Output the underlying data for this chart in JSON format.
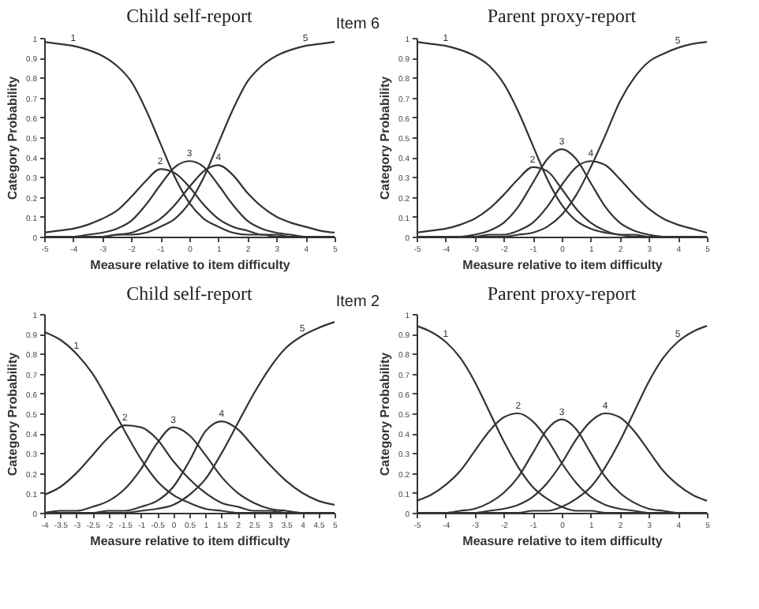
{
  "chart_data": [
    {
      "type": "line",
      "title": "Child self-report",
      "xlabel": "Measure relative to item difficulty",
      "ylabel": "Category Probability",
      "annotations": [
        "Item 6"
      ],
      "x": [
        -5,
        -4.5,
        -4,
        -3.5,
        -3,
        -2.5,
        -2,
        -1.5,
        -1,
        -0.5,
        0,
        0.5,
        1,
        1.5,
        2,
        2.5,
        3,
        3.5,
        4,
        4.5,
        5
      ],
      "xlim": [
        -5,
        5
      ],
      "xticks": [
        -5,
        -4,
        -3,
        -2,
        -1,
        0,
        1,
        2,
        3,
        4,
        5
      ],
      "ylim": [
        0,
        1
      ],
      "yticks": [
        0,
        0.1,
        0.2,
        0.3,
        0.4,
        0.5,
        0.6,
        0.7,
        0.8,
        0.9,
        1
      ],
      "grid": false,
      "series": [
        {
          "name": "1",
          "color": "#333333",
          "values": [
            0.98,
            0.97,
            0.96,
            0.94,
            0.91,
            0.86,
            0.78,
            0.64,
            0.47,
            0.3,
            0.17,
            0.09,
            0.05,
            0.02,
            0.01,
            0.01,
            0,
            0,
            0,
            0,
            0
          ]
        },
        {
          "name": "2",
          "color": "#333333",
          "values": [
            0.02,
            0.03,
            0.04,
            0.06,
            0.09,
            0.13,
            0.2,
            0.28,
            0.34,
            0.32,
            0.25,
            0.16,
            0.09,
            0.05,
            0.03,
            0.01,
            0.01,
            0,
            0,
            0,
            0
          ]
        },
        {
          "name": "3",
          "color": "#333333",
          "values": [
            0,
            0,
            0,
            0.01,
            0.02,
            0.04,
            0.08,
            0.16,
            0.26,
            0.35,
            0.38,
            0.35,
            0.26,
            0.16,
            0.08,
            0.04,
            0.02,
            0.01,
            0,
            0,
            0
          ]
        },
        {
          "name": "4",
          "color": "#333333",
          "values": [
            0,
            0,
            0,
            0,
            0,
            0.01,
            0.02,
            0.05,
            0.09,
            0.16,
            0.25,
            0.33,
            0.36,
            0.31,
            0.22,
            0.15,
            0.1,
            0.07,
            0.05,
            0.03,
            0.02
          ]
        },
        {
          "name": "5",
          "color": "#333333",
          "values": [
            0,
            0,
            0,
            0,
            0,
            0.01,
            0.01,
            0.02,
            0.05,
            0.09,
            0.17,
            0.3,
            0.47,
            0.64,
            0.78,
            0.86,
            0.91,
            0.94,
            0.96,
            0.97,
            0.98
          ]
        }
      ]
    },
    {
      "type": "line",
      "title": "Parent proxy-report",
      "xlabel": "Measure relative to item difficulty",
      "ylabel": "Category Probability",
      "x": [
        -5,
        -4.5,
        -4,
        -3.5,
        -3,
        -2.5,
        -2,
        -1.5,
        -1,
        -0.5,
        0,
        0.5,
        1,
        1.5,
        2,
        2.5,
        3,
        3.5,
        4,
        4.5,
        5
      ],
      "xlim": [
        -5,
        5
      ],
      "xticks": [
        -5,
        -4,
        -3,
        -2,
        -1,
        0,
        1,
        2,
        3,
        4,
        5
      ],
      "ylim": [
        0,
        1
      ],
      "yticks": [
        0,
        0.1,
        0.2,
        0.3,
        0.4,
        0.5,
        0.6,
        0.7,
        0.8,
        0.9,
        1
      ],
      "grid": false,
      "series": [
        {
          "name": "1",
          "color": "#333333",
          "values": [
            0.98,
            0.97,
            0.96,
            0.94,
            0.91,
            0.86,
            0.77,
            0.63,
            0.46,
            0.29,
            0.16,
            0.08,
            0.04,
            0.02,
            0.01,
            0,
            0,
            0,
            0,
            0,
            0
          ]
        },
        {
          "name": "2",
          "color": "#333333",
          "values": [
            0.02,
            0.03,
            0.04,
            0.06,
            0.09,
            0.14,
            0.21,
            0.29,
            0.35,
            0.33,
            0.24,
            0.14,
            0.07,
            0.03,
            0.01,
            0.01,
            0,
            0,
            0,
            0,
            0
          ]
        },
        {
          "name": "3",
          "color": "#333333",
          "values": [
            0,
            0,
            0,
            0,
            0.01,
            0.03,
            0.07,
            0.15,
            0.27,
            0.39,
            0.44,
            0.39,
            0.27,
            0.15,
            0.07,
            0.03,
            0.01,
            0,
            0,
            0,
            0
          ]
        },
        {
          "name": "4",
          "color": "#333333",
          "values": [
            0,
            0,
            0,
            0,
            0,
            0.01,
            0.01,
            0.03,
            0.07,
            0.15,
            0.26,
            0.35,
            0.38,
            0.36,
            0.29,
            0.21,
            0.14,
            0.09,
            0.06,
            0.04,
            0.02
          ]
        },
        {
          "name": "5",
          "color": "#333333",
          "values": [
            0,
            0,
            0,
            0,
            0,
            0,
            0,
            0.01,
            0.02,
            0.05,
            0.11,
            0.21,
            0.35,
            0.51,
            0.68,
            0.8,
            0.88,
            0.92,
            0.95,
            0.97,
            0.98
          ]
        }
      ]
    },
    {
      "type": "line",
      "title": "Child self-report",
      "xlabel": "Measure relative to item difficulty",
      "ylabel": "Category Probability",
      "annotations": [
        "Item 2"
      ],
      "x": [
        -4,
        -3.5,
        -3,
        -2.5,
        -2,
        -1.5,
        -1,
        -0.5,
        0,
        0.5,
        1,
        1.5,
        2,
        2.5,
        3,
        3.5,
        4,
        4.5,
        5
      ],
      "xlim": [
        -4,
        5
      ],
      "xticks": [
        -4,
        -3.5,
        -3,
        -2.5,
        -2,
        -1.5,
        -1,
        -0.5,
        0,
        0.5,
        1,
        1.5,
        2,
        2.5,
        3,
        3.5,
        4,
        4.5,
        5
      ],
      "ylim": [
        0,
        1
      ],
      "yticks": [
        0,
        0.1,
        0.2,
        0.3,
        0.4,
        0.5,
        0.6,
        0.7,
        0.8,
        0.9,
        1
      ],
      "grid": false,
      "series": [
        {
          "name": "1",
          "color": "#333333",
          "values": [
            0.91,
            0.87,
            0.8,
            0.7,
            0.56,
            0.41,
            0.27,
            0.16,
            0.09,
            0.05,
            0.02,
            0.01,
            0,
            0,
            0,
            0,
            0,
            0,
            0
          ]
        },
        {
          "name": "2",
          "color": "#333333",
          "values": [
            0.09,
            0.13,
            0.2,
            0.29,
            0.38,
            0.44,
            0.43,
            0.37,
            0.26,
            0.17,
            0.1,
            0.05,
            0.03,
            0.01,
            0.01,
            0,
            0,
            0,
            0
          ]
        },
        {
          "name": "3",
          "color": "#333333",
          "values": [
            0,
            0.01,
            0.01,
            0.03,
            0.06,
            0.12,
            0.22,
            0.35,
            0.43,
            0.39,
            0.29,
            0.18,
            0.1,
            0.05,
            0.02,
            0.01,
            0,
            0,
            0
          ]
        },
        {
          "name": "4",
          "color": "#333333",
          "values": [
            0,
            0,
            0,
            0,
            0.01,
            0.01,
            0.03,
            0.06,
            0.13,
            0.26,
            0.41,
            0.46,
            0.42,
            0.33,
            0.24,
            0.16,
            0.1,
            0.06,
            0.04
          ]
        },
        {
          "name": "5",
          "color": "#333333",
          "values": [
            0,
            0,
            0,
            0,
            0,
            0,
            0.01,
            0.02,
            0.04,
            0.09,
            0.17,
            0.3,
            0.45,
            0.6,
            0.73,
            0.83,
            0.89,
            0.93,
            0.96
          ]
        }
      ]
    },
    {
      "type": "line",
      "title": "Parent proxy-report",
      "xlabel": "Measure relative to item difficulty",
      "ylabel": "Category Probability",
      "x": [
        -5,
        -4.5,
        -4,
        -3.5,
        -3,
        -2.5,
        -2,
        -1.5,
        -1,
        -0.5,
        0,
        0.5,
        1,
        1.5,
        2,
        2.5,
        3,
        3.5,
        4,
        4.5,
        5
      ],
      "xlim": [
        -5,
        5
      ],
      "xticks": [
        -5,
        -4,
        -3,
        -2,
        -1,
        0,
        1,
        2,
        3,
        4,
        5
      ],
      "ylim": [
        0,
        1
      ],
      "yticks": [
        0,
        0.1,
        0.2,
        0.3,
        0.4,
        0.5,
        0.6,
        0.7,
        0.8,
        0.9,
        1
      ],
      "grid": false,
      "series": [
        {
          "name": "1",
          "color": "#333333",
          "values": [
            0.94,
            0.91,
            0.86,
            0.78,
            0.66,
            0.51,
            0.36,
            0.23,
            0.13,
            0.07,
            0.03,
            0.01,
            0.01,
            0,
            0,
            0,
            0,
            0,
            0,
            0,
            0
          ]
        },
        {
          "name": "2",
          "color": "#333333",
          "values": [
            0.06,
            0.09,
            0.14,
            0.21,
            0.31,
            0.41,
            0.48,
            0.5,
            0.46,
            0.37,
            0.25,
            0.15,
            0.08,
            0.04,
            0.02,
            0.01,
            0,
            0,
            0,
            0,
            0
          ]
        },
        {
          "name": "3",
          "color": "#333333",
          "values": [
            0,
            0,
            0,
            0.01,
            0.02,
            0.05,
            0.1,
            0.18,
            0.3,
            0.42,
            0.47,
            0.42,
            0.3,
            0.18,
            0.1,
            0.05,
            0.02,
            0.01,
            0,
            0,
            0
          ]
        },
        {
          "name": "4",
          "color": "#333333",
          "values": [
            0,
            0,
            0,
            0,
            0,
            0.01,
            0.02,
            0.04,
            0.08,
            0.15,
            0.25,
            0.37,
            0.46,
            0.5,
            0.48,
            0.41,
            0.31,
            0.21,
            0.14,
            0.09,
            0.06
          ]
        },
        {
          "name": "5",
          "color": "#333333",
          "values": [
            0,
            0,
            0,
            0,
            0,
            0,
            0,
            0,
            0.01,
            0.01,
            0.03,
            0.07,
            0.13,
            0.23,
            0.36,
            0.51,
            0.66,
            0.78,
            0.86,
            0.91,
            0.94
          ]
        }
      ]
    }
  ]
}
